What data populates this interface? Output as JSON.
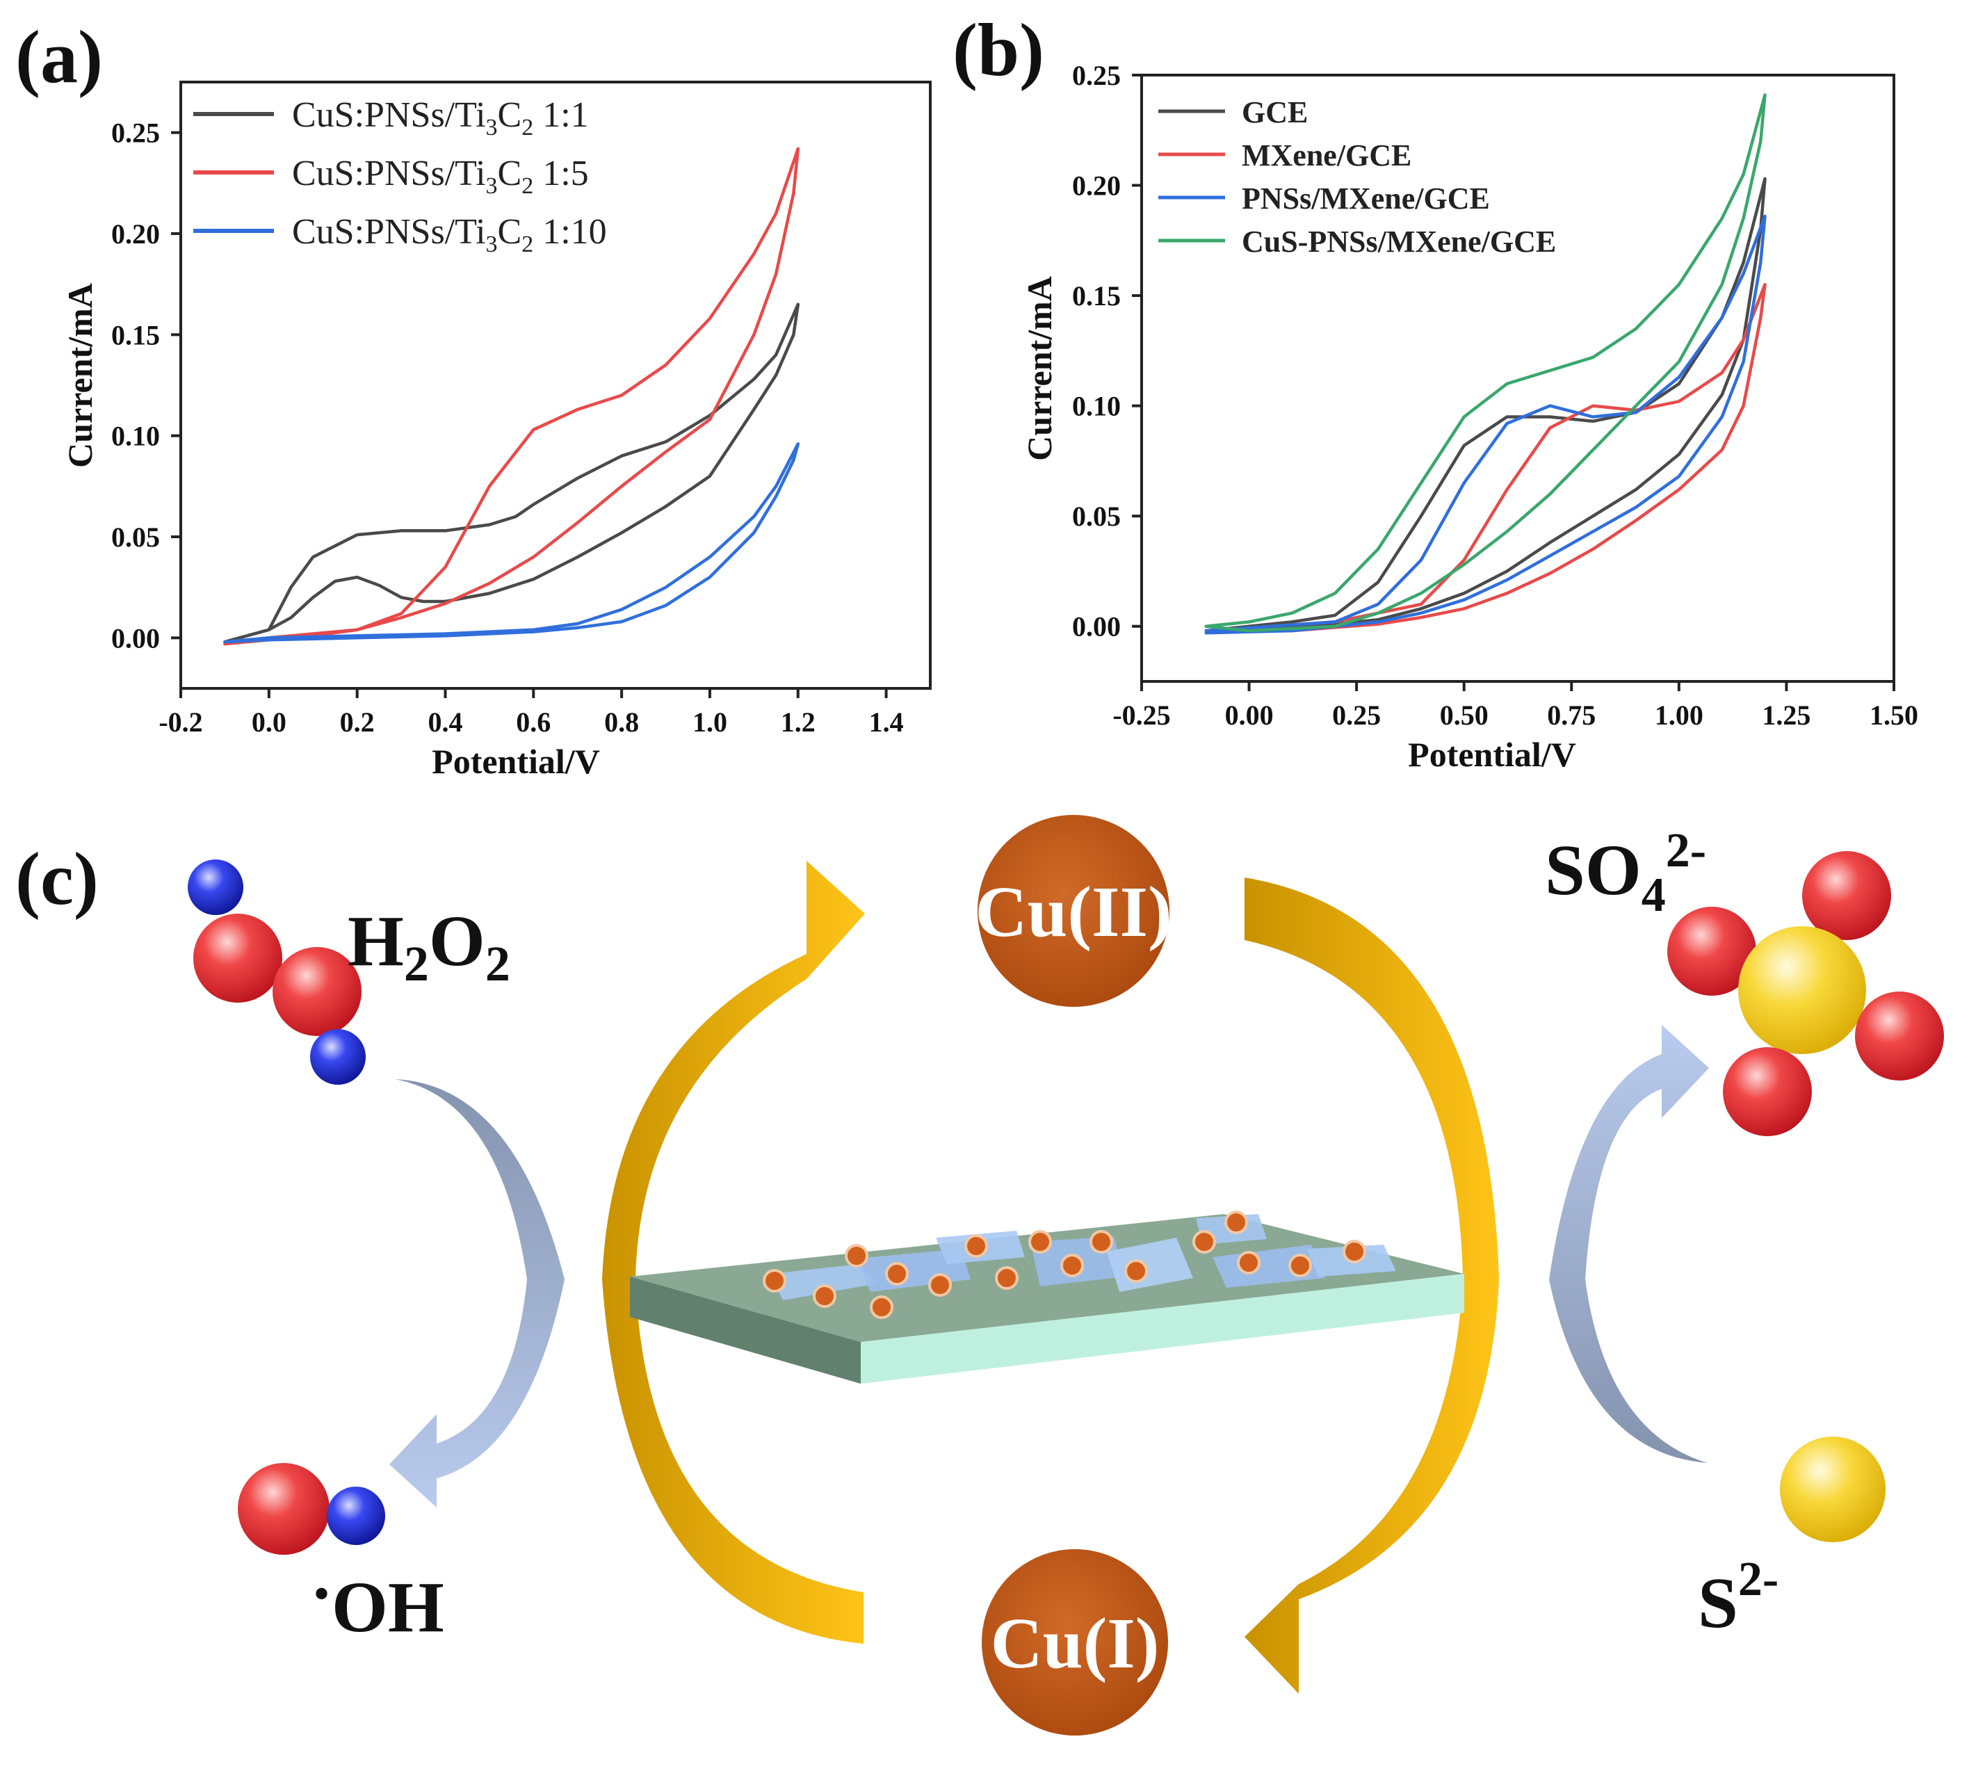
{
  "figure": {
    "panel_labels": {
      "a": "(a)",
      "b": "(b)",
      "c": "(c)"
    }
  },
  "chart_data": [
    {
      "id": "a",
      "type": "line",
      "title": "",
      "xlabel": "Potential/V",
      "ylabel": "Current/mA",
      "xlim": [
        -0.2,
        1.5
      ],
      "ylim": [
        -0.025,
        0.275
      ],
      "xticks": [
        -0.2,
        0.0,
        0.2,
        0.4,
        0.6,
        0.8,
        1.0,
        1.2,
        1.4
      ],
      "xtick_labels": [
        "-0.2",
        "0.0",
        "0.2",
        "0.4",
        "0.6",
        "0.8",
        "1.0",
        "1.2",
        "1.4"
      ],
      "yticks": [
        0.0,
        0.05,
        0.1,
        0.15,
        0.2,
        0.25
      ],
      "ytick_labels": [
        "0.00",
        "0.05",
        "0.10",
        "0.15",
        "0.20",
        "0.25"
      ],
      "grid": false,
      "legend_position": "top-left",
      "series": [
        {
          "name": "CuS:PNSs/Ti3C2 1:1",
          "legend_parts": {
            "a": "CuS:PNSs/Ti",
            "b": "3",
            "c": "C",
            "d": "2",
            "e": " 1:1"
          },
          "color": "#4a4a4a",
          "points": [
            [
              -0.1,
              -0.002
            ],
            [
              0.0,
              0.004
            ],
            [
              0.05,
              0.025
            ],
            [
              0.1,
              0.04
            ],
            [
              0.2,
              0.051
            ],
            [
              0.3,
              0.053
            ],
            [
              0.4,
              0.053
            ],
            [
              0.5,
              0.056
            ],
            [
              0.56,
              0.06
            ],
            [
              0.6,
              0.066
            ],
            [
              0.7,
              0.079
            ],
            [
              0.8,
              0.09
            ],
            [
              0.9,
              0.097
            ],
            [
              1.0,
              0.11
            ],
            [
              1.1,
              0.128
            ],
            [
              1.15,
              0.14
            ],
            [
              1.2,
              0.165
            ],
            [
              1.19,
              0.15
            ],
            [
              1.15,
              0.13
            ],
            [
              1.1,
              0.113
            ],
            [
              1.0,
              0.08
            ],
            [
              0.9,
              0.065
            ],
            [
              0.8,
              0.052
            ],
            [
              0.7,
              0.04
            ],
            [
              0.6,
              0.029
            ],
            [
              0.5,
              0.022
            ],
            [
              0.4,
              0.018
            ],
            [
              0.35,
              0.018
            ],
            [
              0.3,
              0.02
            ],
            [
              0.25,
              0.026
            ],
            [
              0.2,
              0.03
            ],
            [
              0.15,
              0.028
            ],
            [
              0.1,
              0.02
            ],
            [
              0.05,
              0.01
            ],
            [
              0.0,
              0.004
            ],
            [
              -0.1,
              -0.002
            ]
          ]
        },
        {
          "name": "CuS:PNSs/Ti3C2 1:5",
          "legend_parts": {
            "a": "CuS:PNSs/Ti",
            "b": "3",
            "c": "C",
            "d": "2",
            "e": " 1:5"
          },
          "color": "#e84a4a",
          "points": [
            [
              -0.1,
              -0.003
            ],
            [
              0.0,
              0.0
            ],
            [
              0.1,
              0.002
            ],
            [
              0.2,
              0.004
            ],
            [
              0.3,
              0.012
            ],
            [
              0.4,
              0.035
            ],
            [
              0.5,
              0.075
            ],
            [
              0.6,
              0.103
            ],
            [
              0.7,
              0.113
            ],
            [
              0.8,
              0.12
            ],
            [
              0.9,
              0.135
            ],
            [
              1.0,
              0.158
            ],
            [
              1.1,
              0.19
            ],
            [
              1.15,
              0.21
            ],
            [
              1.2,
              0.242
            ],
            [
              1.19,
              0.22
            ],
            [
              1.15,
              0.18
            ],
            [
              1.1,
              0.15
            ],
            [
              1.0,
              0.108
            ],
            [
              0.9,
              0.092
            ],
            [
              0.8,
              0.075
            ],
            [
              0.7,
              0.057
            ],
            [
              0.6,
              0.04
            ],
            [
              0.5,
              0.027
            ],
            [
              0.4,
              0.017
            ],
            [
              0.3,
              0.01
            ],
            [
              0.2,
              0.004
            ],
            [
              0.1,
              0.001
            ],
            [
              0.0,
              -0.001
            ],
            [
              -0.1,
              -0.003
            ]
          ]
        },
        {
          "name": "CuS:PNSs/Ti3C2 1:10",
          "legend_parts": {
            "a": "CuS:PNSs/Ti",
            "b": "3",
            "c": "C",
            "d": "2",
            "e": " 1:10"
          },
          "color": "#2f6fdc",
          "points": [
            [
              -0.1,
              -0.002
            ],
            [
              0.0,
              0.0
            ],
            [
              0.2,
              0.001
            ],
            [
              0.4,
              0.002
            ],
            [
              0.6,
              0.004
            ],
            [
              0.7,
              0.007
            ],
            [
              0.8,
              0.014
            ],
            [
              0.9,
              0.025
            ],
            [
              1.0,
              0.04
            ],
            [
              1.1,
              0.06
            ],
            [
              1.15,
              0.075
            ],
            [
              1.2,
              0.096
            ],
            [
              1.19,
              0.088
            ],
            [
              1.15,
              0.07
            ],
            [
              1.1,
              0.052
            ],
            [
              1.0,
              0.03
            ],
            [
              0.9,
              0.016
            ],
            [
              0.8,
              0.008
            ],
            [
              0.7,
              0.005
            ],
            [
              0.6,
              0.003
            ],
            [
              0.4,
              0.001
            ],
            [
              0.2,
              0.0
            ],
            [
              0.0,
              -0.001
            ],
            [
              -0.1,
              -0.002
            ]
          ]
        }
      ]
    },
    {
      "id": "b",
      "type": "line",
      "title": "",
      "xlabel": "Potential/V",
      "ylabel": "Current/mA",
      "xlim": [
        -0.25,
        1.5
      ],
      "ylim": [
        -0.025,
        0.25
      ],
      "xticks": [
        -0.25,
        0.0,
        0.25,
        0.5,
        0.75,
        1.0,
        1.25,
        1.5
      ],
      "xtick_labels": [
        "-0.25",
        "0.00",
        "0.25",
        "0.50",
        "0.75",
        "1.00",
        "1.25",
        "1.50"
      ],
      "yticks": [
        0.0,
        0.05,
        0.1,
        0.15,
        0.2,
        0.25
      ],
      "ytick_labels": [
        "0.00",
        "0.05",
        "0.10",
        "0.15",
        "0.20",
        "0.25"
      ],
      "grid": false,
      "legend_position": "top-left",
      "series": [
        {
          "name": "GCE",
          "color": "#4a4a4a",
          "points": [
            [
              -0.1,
              -0.002
            ],
            [
              0.1,
              0.002
            ],
            [
              0.2,
              0.005
            ],
            [
              0.3,
              0.02
            ],
            [
              0.4,
              0.05
            ],
            [
              0.5,
              0.082
            ],
            [
              0.6,
              0.095
            ],
            [
              0.7,
              0.095
            ],
            [
              0.8,
              0.093
            ],
            [
              0.9,
              0.097
            ],
            [
              1.0,
              0.11
            ],
            [
              1.1,
              0.14
            ],
            [
              1.15,
              0.165
            ],
            [
              1.2,
              0.203
            ],
            [
              1.19,
              0.18
            ],
            [
              1.15,
              0.13
            ],
            [
              1.1,
              0.105
            ],
            [
              1.0,
              0.078
            ],
            [
              0.9,
              0.062
            ],
            [
              0.8,
              0.05
            ],
            [
              0.7,
              0.038
            ],
            [
              0.6,
              0.025
            ],
            [
              0.5,
              0.015
            ],
            [
              0.4,
              0.008
            ],
            [
              0.3,
              0.003
            ],
            [
              0.2,
              0.001
            ],
            [
              0.0,
              -0.002
            ],
            [
              -0.1,
              -0.002
            ]
          ]
        },
        {
          "name": "MXene/GCE",
          "color": "#e84a4a",
          "points": [
            [
              -0.1,
              -0.002
            ],
            [
              0.2,
              0.002
            ],
            [
              0.4,
              0.01
            ],
            [
              0.5,
              0.03
            ],
            [
              0.6,
              0.062
            ],
            [
              0.7,
              0.09
            ],
            [
              0.8,
              0.1
            ],
            [
              0.9,
              0.098
            ],
            [
              1.0,
              0.102
            ],
            [
              1.1,
              0.115
            ],
            [
              1.15,
              0.13
            ],
            [
              1.2,
              0.155
            ],
            [
              1.19,
              0.14
            ],
            [
              1.15,
              0.1
            ],
            [
              1.1,
              0.08
            ],
            [
              1.0,
              0.062
            ],
            [
              0.9,
              0.048
            ],
            [
              0.8,
              0.035
            ],
            [
              0.7,
              0.024
            ],
            [
              0.6,
              0.015
            ],
            [
              0.5,
              0.008
            ],
            [
              0.4,
              0.004
            ],
            [
              0.3,
              0.001
            ],
            [
              0.1,
              -0.002
            ],
            [
              -0.1,
              -0.002
            ]
          ]
        },
        {
          "name": "PNSs/MXene/GCE",
          "color": "#2f6fdc",
          "points": [
            [
              -0.1,
              -0.002
            ],
            [
              0.2,
              0.002
            ],
            [
              0.3,
              0.01
            ],
            [
              0.4,
              0.03
            ],
            [
              0.5,
              0.065
            ],
            [
              0.6,
              0.092
            ],
            [
              0.7,
              0.1
            ],
            [
              0.8,
              0.095
            ],
            [
              0.9,
              0.097
            ],
            [
              1.0,
              0.113
            ],
            [
              1.1,
              0.14
            ],
            [
              1.15,
              0.16
            ],
            [
              1.2,
              0.186
            ],
            [
              1.19,
              0.165
            ],
            [
              1.15,
              0.12
            ],
            [
              1.1,
              0.095
            ],
            [
              1.0,
              0.068
            ],
            [
              0.9,
              0.054
            ],
            [
              0.8,
              0.043
            ],
            [
              0.7,
              0.032
            ],
            [
              0.6,
              0.021
            ],
            [
              0.5,
              0.012
            ],
            [
              0.4,
              0.006
            ],
            [
              0.3,
              0.002
            ],
            [
              0.1,
              -0.002
            ],
            [
              -0.1,
              -0.003
            ]
          ]
        },
        {
          "name": "CuS-PNSs/MXene/GCE",
          "color": "#3aa76d",
          "points": [
            [
              -0.1,
              0.0
            ],
            [
              0.0,
              0.002
            ],
            [
              0.1,
              0.006
            ],
            [
              0.2,
              0.015
            ],
            [
              0.3,
              0.035
            ],
            [
              0.4,
              0.065
            ],
            [
              0.5,
              0.095
            ],
            [
              0.6,
              0.11
            ],
            [
              0.7,
              0.116
            ],
            [
              0.8,
              0.122
            ],
            [
              0.9,
              0.135
            ],
            [
              1.0,
              0.155
            ],
            [
              1.1,
              0.185
            ],
            [
              1.15,
              0.205
            ],
            [
              1.2,
              0.241
            ],
            [
              1.19,
              0.22
            ],
            [
              1.15,
              0.185
            ],
            [
              1.1,
              0.155
            ],
            [
              1.0,
              0.12
            ],
            [
              0.9,
              0.1
            ],
            [
              0.8,
              0.08
            ],
            [
              0.7,
              0.06
            ],
            [
              0.6,
              0.043
            ],
            [
              0.5,
              0.028
            ],
            [
              0.4,
              0.015
            ],
            [
              0.3,
              0.006
            ],
            [
              0.2,
              0.0
            ],
            [
              0.0,
              -0.002
            ],
            [
              -0.1,
              0.0
            ]
          ]
        }
      ]
    }
  ],
  "scheme": {
    "h2o2": {
      "main": "H",
      "sub1": "2",
      "mid": "O",
      "sub2": "2"
    },
    "oh": {
      "dot": "•",
      "text": "OH"
    },
    "so4": {
      "main": "SO",
      "sub": "4",
      "sup": "2-"
    },
    "s2": {
      "main": "S",
      "sup": "2-"
    },
    "cu2": "Cu(II)",
    "cu1": "Cu(I)",
    "colors": {
      "oxygen": "#e8252a",
      "hydrogen": "#1a2be0",
      "sulfur": "#f2cc20",
      "copper": "#c4581a",
      "gold_arrow": "#f0b000",
      "blue_arrow": "#9aaed6"
    }
  }
}
